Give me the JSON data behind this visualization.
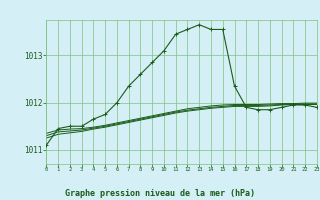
{
  "background_color": "#d4eff5",
  "grid_color": "#80c080",
  "line_color": "#1a5c1a",
  "title": "Graphe pression niveau de la mer (hPa)",
  "ylim": [
    1010.7,
    1013.75
  ],
  "xlim": [
    0,
    23
  ],
  "yticks": [
    1011,
    1012,
    1013
  ],
  "xticks": [
    0,
    1,
    2,
    3,
    4,
    5,
    6,
    7,
    8,
    9,
    10,
    11,
    12,
    13,
    14,
    15,
    16,
    17,
    18,
    19,
    20,
    21,
    22,
    23
  ],
  "series": [
    {
      "x": [
        0,
        1,
        2,
        3,
        4,
        5,
        6,
        7,
        8,
        9,
        10,
        11,
        12,
        13,
        14,
        15,
        16,
        17,
        18,
        19,
        20,
        21,
        22,
        23
      ],
      "y": [
        1011.1,
        1011.45,
        1011.5,
        1011.5,
        1011.65,
        1011.75,
        1012.0,
        1012.35,
        1012.6,
        1012.85,
        1013.1,
        1013.45,
        1013.55,
        1013.65,
        1013.55,
        1013.55,
        1012.35,
        1011.9,
        1011.85,
        1011.85,
        1011.9,
        1011.95,
        1011.95,
        1011.9
      ],
      "marker": "+",
      "markersize": 3,
      "linewidth": 0.8
    },
    {
      "x": [
        0,
        1,
        2,
        3,
        4,
        5,
        6,
        7,
        8,
        9,
        10,
        11,
        12,
        13,
        14,
        15,
        16,
        17,
        18,
        19,
        20,
        21,
        22,
        23
      ],
      "y": [
        1011.35,
        1011.42,
        1011.44,
        1011.45,
        1011.48,
        1011.52,
        1011.57,
        1011.62,
        1011.67,
        1011.72,
        1011.77,
        1011.82,
        1011.87,
        1011.9,
        1011.93,
        1011.95,
        1011.96,
        1011.96,
        1011.96,
        1011.97,
        1011.98,
        1011.98,
        1011.99,
        1011.99
      ],
      "marker": null,
      "linewidth": 0.7
    },
    {
      "x": [
        0,
        1,
        2,
        3,
        4,
        5,
        6,
        7,
        8,
        9,
        10,
        11,
        12,
        13,
        14,
        15,
        16,
        17,
        18,
        19,
        20,
        21,
        22,
        23
      ],
      "y": [
        1011.3,
        1011.38,
        1011.4,
        1011.42,
        1011.46,
        1011.5,
        1011.55,
        1011.6,
        1011.65,
        1011.7,
        1011.75,
        1011.8,
        1011.84,
        1011.87,
        1011.9,
        1011.92,
        1011.94,
        1011.94,
        1011.94,
        1011.95,
        1011.96,
        1011.97,
        1011.97,
        1011.97
      ],
      "marker": null,
      "linewidth": 0.7
    },
    {
      "x": [
        0,
        1,
        2,
        3,
        4,
        5,
        6,
        7,
        8,
        9,
        10,
        11,
        12,
        13,
        14,
        15,
        16,
        17,
        18,
        19,
        20,
        21,
        22,
        23
      ],
      "y": [
        1011.25,
        1011.33,
        1011.36,
        1011.39,
        1011.44,
        1011.48,
        1011.53,
        1011.58,
        1011.63,
        1011.68,
        1011.73,
        1011.78,
        1011.82,
        1011.85,
        1011.88,
        1011.9,
        1011.92,
        1011.92,
        1011.92,
        1011.93,
        1011.95,
        1011.96,
        1011.96,
        1011.96
      ],
      "marker": null,
      "linewidth": 0.7
    }
  ]
}
